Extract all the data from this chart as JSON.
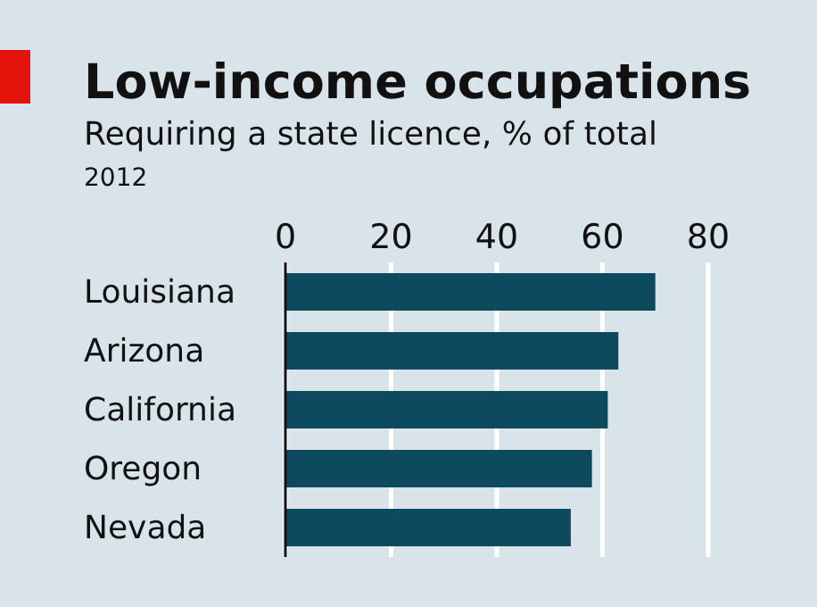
{
  "chart_data": {
    "type": "bar",
    "orientation": "horizontal",
    "title": "Low-income occupations",
    "subtitle": "Requiring a state licence, % of total",
    "annotations": [
      "2012"
    ],
    "categories": [
      "Louisiana",
      "Arizona",
      "California",
      "Oregon",
      "Nevada"
    ],
    "values": [
      70,
      63,
      61,
      58,
      54
    ],
    "color": "#0d4a5e",
    "xlim": [
      0,
      80
    ],
    "xticks": [
      0,
      20,
      40,
      60,
      80
    ],
    "grid": "x",
    "legend": false
  }
}
